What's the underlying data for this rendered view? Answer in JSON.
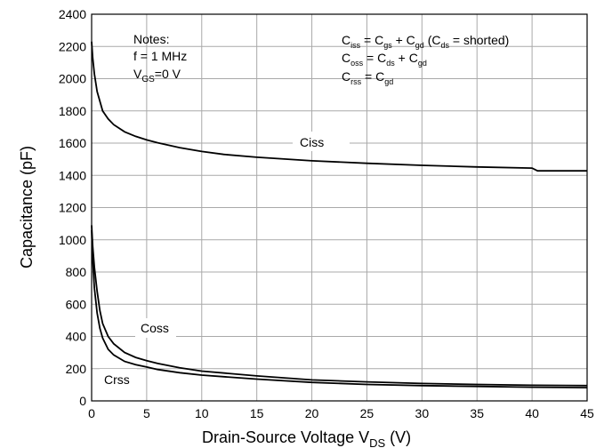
{
  "chart_data": {
    "type": "line",
    "xlabel_main": "Drain-Source Voltage V",
    "xlabel_sub": "DS",
    "xlabel_unit": " (V)",
    "ylabel": "Capacitance (pF)",
    "xlim": [
      0,
      45
    ],
    "ylim": [
      0,
      2400
    ],
    "x_ticks": [
      0,
      5,
      10,
      15,
      20,
      25,
      30,
      35,
      40,
      45
    ],
    "y_ticks": [
      0,
      200,
      400,
      600,
      800,
      1000,
      1200,
      1400,
      1600,
      1800,
      2000,
      2200,
      2400
    ],
    "grid": true,
    "notes": {
      "header": "Notes:",
      "freq": "f = 1 MHz",
      "vgs_main": "V",
      "vgs_sub": "GS",
      "vgs_value": "=0 V"
    },
    "equations": {
      "ciss": [
        "C",
        "iss",
        " = C",
        "gs",
        " + C",
        "gd",
        " (C",
        "ds",
        " = shorted)"
      ],
      "coss": [
        "C",
        "oss",
        " = C",
        "ds",
        " + C",
        "gd"
      ],
      "crss": [
        "C",
        "rss",
        " = C",
        "gd"
      ]
    },
    "series": [
      {
        "name": "Ciss",
        "x": [
          0,
          0.1,
          0.25,
          0.5,
          1,
          1.5,
          2,
          3,
          4,
          5,
          6,
          8,
          10,
          12,
          15,
          20,
          25,
          30,
          35,
          40,
          40.5,
          45
        ],
        "y": [
          2230,
          2130,
          2030,
          1920,
          1800,
          1750,
          1715,
          1670,
          1642,
          1620,
          1602,
          1572,
          1548,
          1530,
          1512,
          1490,
          1475,
          1462,
          1452,
          1445,
          1428,
          1428
        ]
      },
      {
        "name": "Coss",
        "x": [
          0,
          0.1,
          0.25,
          0.5,
          0.75,
          1,
          1.5,
          2,
          3,
          4,
          5,
          6,
          8,
          10,
          15,
          20,
          25,
          30,
          35,
          40,
          45
        ],
        "y": [
          1090,
          960,
          830,
          680,
          560,
          480,
          400,
          355,
          300,
          270,
          250,
          232,
          205,
          185,
          155,
          130,
          118,
          108,
          102,
          97,
          95
        ]
      },
      {
        "name": "Crss",
        "x": [
          0,
          0.1,
          0.25,
          0.5,
          0.75,
          1,
          1.5,
          2,
          3,
          4,
          5,
          6,
          8,
          10,
          15,
          20,
          25,
          30,
          35,
          40,
          45
        ],
        "y": [
          1060,
          880,
          700,
          545,
          450,
          390,
          320,
          285,
          245,
          225,
          210,
          195,
          175,
          160,
          135,
          115,
          102,
          95,
          90,
          85,
          82
        ]
      }
    ]
  }
}
